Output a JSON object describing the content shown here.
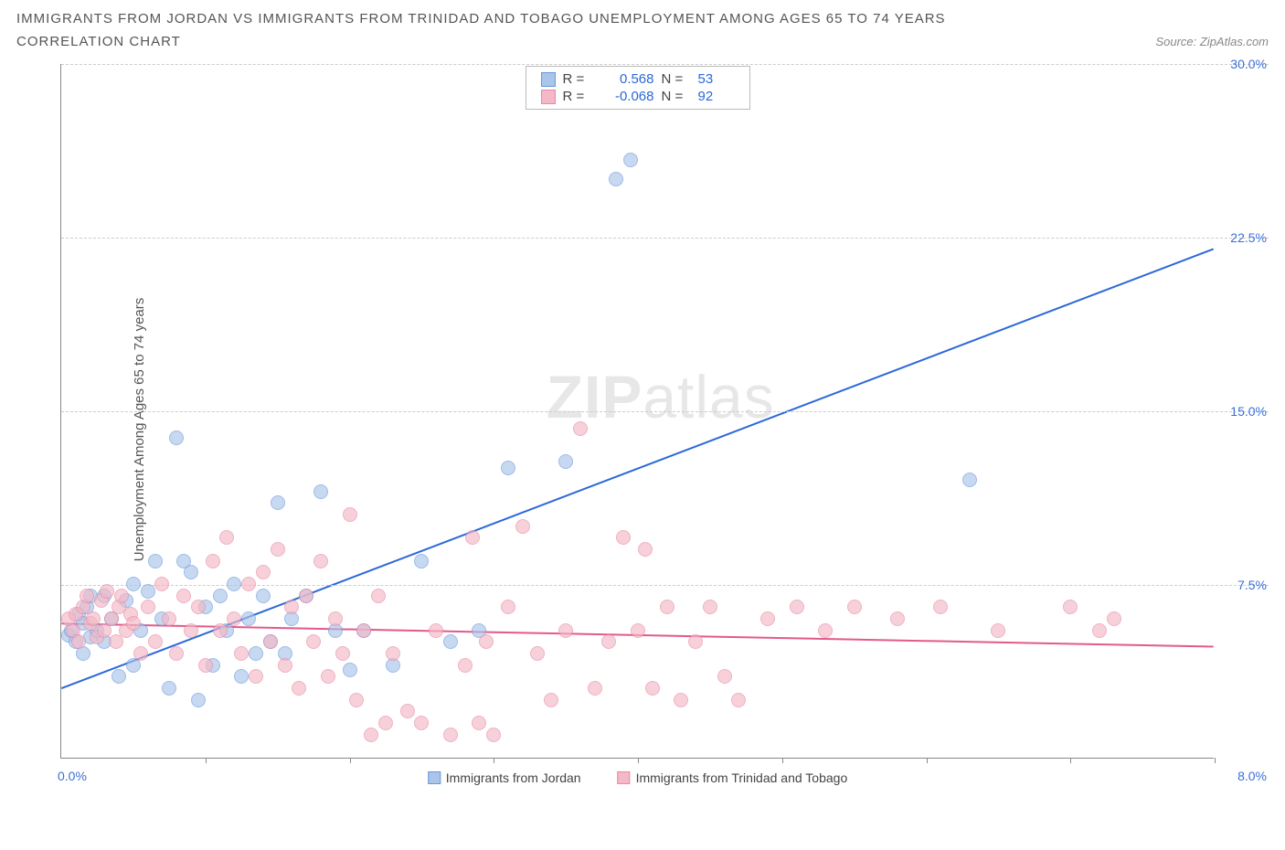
{
  "title": "IMMIGRANTS FROM JORDAN VS IMMIGRANTS FROM TRINIDAD AND TOBAGO UNEMPLOYMENT AMONG AGES 65 TO 74 YEARS",
  "subtitle": "CORRELATION CHART",
  "source": "Source: ZipAtlas.com",
  "y_axis_label": "Unemployment Among Ages 65 to 74 years",
  "watermark_a": "ZIP",
  "watermark_b": "atlas",
  "chart": {
    "type": "scatter",
    "xlim": [
      0,
      8
    ],
    "ylim": [
      0,
      30
    ],
    "yticks": [
      7.5,
      15.0,
      22.5,
      30.0
    ],
    "ytick_labels": [
      "7.5%",
      "15.0%",
      "22.5%",
      "30.0%"
    ],
    "xticks": [
      1,
      2,
      3,
      4,
      5,
      6,
      7,
      8
    ],
    "x_left_label": "0.0%",
    "x_right_label": "8.0%",
    "background_color": "#ffffff",
    "grid_color": "#cccccc",
    "series": [
      {
        "name": "Immigrants from Jordan",
        "color_fill": "#aac4ea",
        "color_stroke": "#6a99dd",
        "r_label": "R =",
        "r_value": "0.568",
        "n_label": "N =",
        "n_value": "53",
        "trend": {
          "x1": 0.0,
          "y1": 3.0,
          "x2": 8.0,
          "y2": 22.0,
          "stroke": "#2b68d8",
          "width": 2
        },
        "points": [
          [
            0.05,
            5.3
          ],
          [
            0.07,
            5.5
          ],
          [
            0.1,
            5.0
          ],
          [
            0.12,
            6.2
          ],
          [
            0.15,
            5.8
          ],
          [
            0.15,
            4.5
          ],
          [
            0.18,
            6.5
          ],
          [
            0.2,
            5.2
          ],
          [
            0.2,
            7.0
          ],
          [
            0.25,
            5.5
          ],
          [
            0.3,
            5.0
          ],
          [
            0.3,
            7.0
          ],
          [
            0.35,
            6.0
          ],
          [
            0.4,
            3.5
          ],
          [
            0.45,
            6.8
          ],
          [
            0.5,
            4.0
          ],
          [
            0.5,
            7.5
          ],
          [
            0.55,
            5.5
          ],
          [
            0.6,
            7.2
          ],
          [
            0.65,
            8.5
          ],
          [
            0.7,
            6.0
          ],
          [
            0.75,
            3.0
          ],
          [
            0.8,
            13.8
          ],
          [
            0.85,
            8.5
          ],
          [
            0.9,
            8.0
          ],
          [
            0.95,
            2.5
          ],
          [
            1.0,
            6.5
          ],
          [
            1.05,
            4.0
          ],
          [
            1.1,
            7.0
          ],
          [
            1.15,
            5.5
          ],
          [
            1.2,
            7.5
          ],
          [
            1.25,
            3.5
          ],
          [
            1.3,
            6.0
          ],
          [
            1.35,
            4.5
          ],
          [
            1.4,
            7.0
          ],
          [
            1.45,
            5.0
          ],
          [
            1.5,
            11.0
          ],
          [
            1.6,
            6.0
          ],
          [
            1.7,
            7.0
          ],
          [
            1.8,
            11.5
          ],
          [
            1.9,
            5.5
          ],
          [
            2.0,
            3.8
          ],
          [
            2.1,
            5.5
          ],
          [
            2.3,
            4.0
          ],
          [
            2.5,
            8.5
          ],
          [
            2.7,
            5.0
          ],
          [
            2.9,
            5.5
          ],
          [
            3.1,
            12.5
          ],
          [
            3.5,
            12.8
          ],
          [
            3.85,
            25.0
          ],
          [
            3.95,
            25.8
          ],
          [
            6.3,
            12.0
          ],
          [
            1.55,
            4.5
          ]
        ]
      },
      {
        "name": "Immigrants from Trinidad and Tobago",
        "color_fill": "#f4b8c6",
        "color_stroke": "#e68aa5",
        "r_label": "R =",
        "r_value": "-0.068",
        "n_label": "N =",
        "n_value": "92",
        "trend": {
          "x1": 0.0,
          "y1": 5.8,
          "x2": 8.0,
          "y2": 4.8,
          "stroke": "#e35a8a",
          "width": 2
        },
        "points": [
          [
            0.05,
            6.0
          ],
          [
            0.08,
            5.5
          ],
          [
            0.1,
            6.2
          ],
          [
            0.12,
            5.0
          ],
          [
            0.15,
            6.5
          ],
          [
            0.18,
            7.0
          ],
          [
            0.2,
            5.8
          ],
          [
            0.22,
            6.0
          ],
          [
            0.25,
            5.2
          ],
          [
            0.28,
            6.8
          ],
          [
            0.3,
            5.5
          ],
          [
            0.32,
            7.2
          ],
          [
            0.35,
            6.0
          ],
          [
            0.38,
            5.0
          ],
          [
            0.4,
            6.5
          ],
          [
            0.42,
            7.0
          ],
          [
            0.45,
            5.5
          ],
          [
            0.48,
            6.2
          ],
          [
            0.5,
            5.8
          ],
          [
            0.55,
            4.5
          ],
          [
            0.6,
            6.5
          ],
          [
            0.65,
            5.0
          ],
          [
            0.7,
            7.5
          ],
          [
            0.75,
            6.0
          ],
          [
            0.8,
            4.5
          ],
          [
            0.85,
            7.0
          ],
          [
            0.9,
            5.5
          ],
          [
            0.95,
            6.5
          ],
          [
            1.0,
            4.0
          ],
          [
            1.05,
            8.5
          ],
          [
            1.1,
            5.5
          ],
          [
            1.15,
            9.5
          ],
          [
            1.2,
            6.0
          ],
          [
            1.25,
            4.5
          ],
          [
            1.3,
            7.5
          ],
          [
            1.35,
            3.5
          ],
          [
            1.4,
            8.0
          ],
          [
            1.45,
            5.0
          ],
          [
            1.5,
            9.0
          ],
          [
            1.55,
            4.0
          ],
          [
            1.6,
            6.5
          ],
          [
            1.65,
            3.0
          ],
          [
            1.7,
            7.0
          ],
          [
            1.75,
            5.0
          ],
          [
            1.8,
            8.5
          ],
          [
            1.85,
            3.5
          ],
          [
            1.9,
            6.0
          ],
          [
            1.95,
            4.5
          ],
          [
            2.0,
            10.5
          ],
          [
            2.05,
            2.5
          ],
          [
            2.1,
            5.5
          ],
          [
            2.15,
            1.0
          ],
          [
            2.2,
            7.0
          ],
          [
            2.25,
            1.5
          ],
          [
            2.3,
            4.5
          ],
          [
            2.4,
            2.0
          ],
          [
            2.5,
            1.5
          ],
          [
            2.6,
            5.5
          ],
          [
            2.7,
            1.0
          ],
          [
            2.8,
            4.0
          ],
          [
            2.85,
            9.5
          ],
          [
            2.9,
            1.5
          ],
          [
            2.95,
            5.0
          ],
          [
            3.0,
            1.0
          ],
          [
            3.1,
            6.5
          ],
          [
            3.2,
            10.0
          ],
          [
            3.3,
            4.5
          ],
          [
            3.4,
            2.5
          ],
          [
            3.5,
            5.5
          ],
          [
            3.6,
            14.2
          ],
          [
            3.7,
            3.0
          ],
          [
            3.8,
            5.0
          ],
          [
            3.9,
            9.5
          ],
          [
            4.0,
            5.5
          ],
          [
            4.1,
            3.0
          ],
          [
            4.2,
            6.5
          ],
          [
            4.3,
            2.5
          ],
          [
            4.4,
            5.0
          ],
          [
            4.5,
            6.5
          ],
          [
            4.6,
            3.5
          ],
          [
            4.7,
            2.5
          ],
          [
            4.9,
            6.0
          ],
          [
            5.1,
            6.5
          ],
          [
            5.3,
            5.5
          ],
          [
            5.5,
            6.5
          ],
          [
            5.8,
            6.0
          ],
          [
            6.1,
            6.5
          ],
          [
            6.5,
            5.5
          ],
          [
            7.0,
            6.5
          ],
          [
            7.2,
            5.5
          ],
          [
            7.3,
            6.0
          ],
          [
            4.05,
            9.0
          ]
        ]
      }
    ],
    "legend": {
      "series1": "Immigrants from Jordan",
      "series2": "Immigrants from Trinidad and Tobago"
    }
  }
}
